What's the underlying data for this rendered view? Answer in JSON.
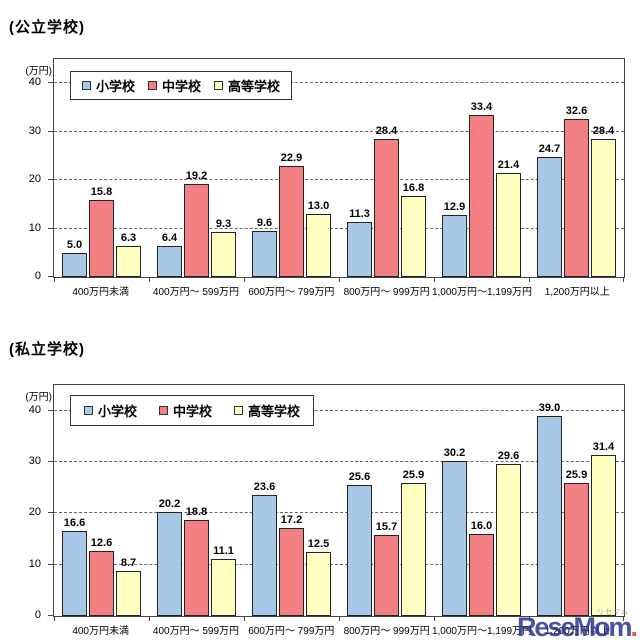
{
  "watermark": {
    "text": "ReseMom",
    "dot": ".",
    "ruby": "リセマム"
  },
  "colors": {
    "series_elementary": "#a8c8e8",
    "series_junior_high": "#f28082",
    "series_high_school": "#ffffc2",
    "bar_border": "#222222",
    "grid": "#666666",
    "logo_navy": "#2a3590",
    "logo_red": "#e8380d"
  },
  "chart_data": [
    {
      "type": "bar",
      "title": "(公立学校)",
      "unit_label": "(万円)",
      "legend_position": "top-left-inside",
      "grid": "horizontal-dashed",
      "ylim": [
        0,
        45
      ],
      "yticks": [
        0,
        10,
        20,
        30,
        40
      ],
      "categories": [
        "400万円未満",
        "400万円～ 599万円",
        "600万円～ 799万円",
        "800万円～ 999万円",
        "1,000万円～1,199万円",
        "1,200万円以上"
      ],
      "series": [
        {
          "name": "小学校",
          "color": "#a8c8e8",
          "values": [
            5.0,
            6.4,
            9.6,
            11.3,
            12.9,
            24.7
          ]
        },
        {
          "name": "中学校",
          "color": "#f28082",
          "values": [
            15.8,
            19.2,
            22.9,
            28.4,
            33.4,
            32.6
          ]
        },
        {
          "name": "高等学校",
          "color": "#ffffc2",
          "values": [
            6.3,
            9.3,
            13.0,
            16.8,
            21.4,
            28.4
          ]
        }
      ]
    },
    {
      "type": "bar",
      "title": "(私立学校)",
      "unit_label": "(万円)",
      "legend_position": "top-left-inside",
      "grid": "horizontal-dashed",
      "ylim": [
        0,
        45
      ],
      "yticks": [
        0,
        10,
        20,
        30,
        40
      ],
      "categories": [
        "400万円未満",
        "400万円～ 599万円",
        "600万円～ 799万円",
        "800万円～ 999万円",
        "1,000万円～1,199万円",
        "1,200万円以上"
      ],
      "series": [
        {
          "name": "小学校",
          "color": "#a8c8e8",
          "values": [
            16.6,
            20.2,
            23.6,
            25.6,
            30.2,
            39.0
          ]
        },
        {
          "name": "中学校",
          "color": "#f28082",
          "values": [
            12.6,
            18.8,
            17.2,
            15.7,
            16.0,
            25.9
          ]
        },
        {
          "name": "高等学校",
          "color": "#ffffc2",
          "values": [
            8.7,
            11.1,
            12.5,
            25.9,
            29.6,
            31.4
          ]
        }
      ]
    }
  ]
}
